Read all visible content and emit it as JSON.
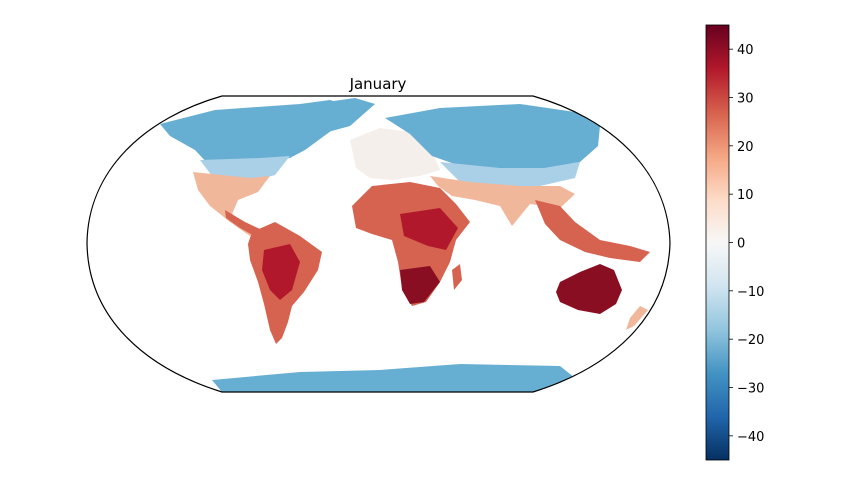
{
  "map": {
    "title": "January",
    "projection": "Robinson",
    "variable": "temperature",
    "continents_color_scale": "diverging red-white-blue"
  },
  "colorbar": {
    "colormap": "RdBu_r",
    "vmin": -45,
    "vmax": 45,
    "ticks": [
      {
        "value": 40,
        "label": "40"
      },
      {
        "value": 30,
        "label": "30"
      },
      {
        "value": 20,
        "label": "20"
      },
      {
        "value": 10,
        "label": "10"
      },
      {
        "value": 0,
        "label": "0"
      },
      {
        "value": -10,
        "label": "−10"
      },
      {
        "value": -20,
        "label": "−20"
      },
      {
        "value": -30,
        "label": "−30"
      },
      {
        "value": -40,
        "label": "−40"
      }
    ],
    "stops": [
      "#053061",
      "#2166ac",
      "#4393c3",
      "#92c5de",
      "#d1e5f0",
      "#f7f7f7",
      "#fddbc7",
      "#f4a582",
      "#d6604d",
      "#b2182b",
      "#67001f"
    ]
  },
  "colors": {
    "cold": "#67aed3",
    "cool": "#a9d0e6",
    "neutral": "#f5efec",
    "warm": "#f1b79b",
    "hot": "#d66250",
    "very_hot": "#b2182b",
    "extreme": "#8a0e22"
  }
}
